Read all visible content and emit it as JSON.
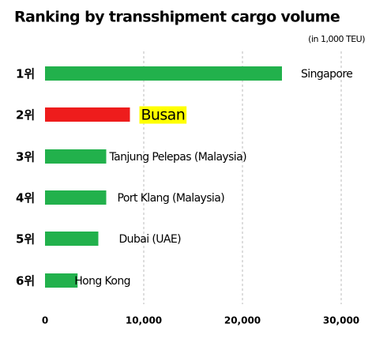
{
  "chart_data": {
    "type": "bar",
    "orientation": "horizontal",
    "title": "Ranking by transshipment cargo volume",
    "subtitle": "(in 1,000 TEU)",
    "categories": [
      "1위",
      "2위",
      "3위",
      "4위",
      "5위",
      "6위"
    ],
    "names": [
      "Singapore",
      "Busan",
      "Tanjung Pelepas (Malaysia)",
      "Port Klang (Malaysia)",
      "Dubai (UAE)",
      "Hong Kong"
    ],
    "values": [
      24000,
      8600,
      6200,
      6200,
      5400,
      3300
    ],
    "colors": [
      "#22b14c",
      "#ee1c1c",
      "#22b14c",
      "#22b14c",
      "#22b14c",
      "#22b14c"
    ],
    "highlight": "#ffff00",
    "highlighted": 1,
    "xlim": [
      0,
      30000
    ],
    "xticks": [
      0,
      {
        "value": 10000,
        "label": "10,000"
      },
      {
        "value": 20000,
        "label": "20,000"
      },
      {
        "value": 30000,
        "label": "30,000"
      }
    ],
    "grid": true
  }
}
